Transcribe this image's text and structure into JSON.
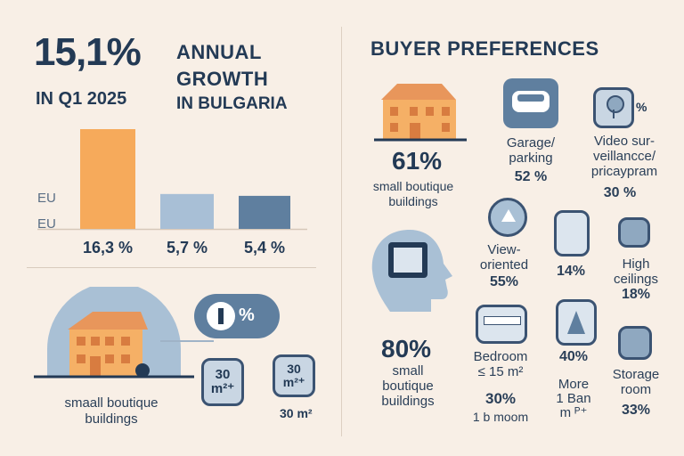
{
  "left": {
    "growth_value": "15,1%",
    "growth_label_1": "ANNUAL",
    "growth_label_2": "GROWTH",
    "period": "IN Q1 2025",
    "region": "IN BULGARIA",
    "axis_labels": [
      "EU",
      "EU"
    ],
    "bottom_label": "smaall boutique\nbuildings",
    "pill_text": "%",
    "tile_a": "30\nm²⁺",
    "tile_b": "30\nm²⁺",
    "tile_b_caption": "30 m²"
  },
  "chart_data": {
    "type": "bar",
    "categories": [
      "16,3 %",
      "5,7 %",
      "5,4 %"
    ],
    "values": [
      16.3,
      5.7,
      5.4
    ],
    "colors": [
      "#f6aa5b",
      "#a8bfd6",
      "#5f7f9f"
    ],
    "title": "",
    "xlabel": "",
    "ylabel": ""
  },
  "right": {
    "title": "BUYER PREFERENCES",
    "boutique_pct": "61%",
    "boutique_label": "small boutique\nbuildings",
    "garage_label": "Garage/\nparking",
    "garage_pct": "52 %",
    "video_label": "Video sur-\nveillancce/\npricaypram",
    "video_pct": "30 %",
    "video_icon_text": "%",
    "view_label": "View-\noriented",
    "view_pct": "55%",
    "window_pct": "14%",
    "ceilings_label": "High\nceilings",
    "ceilings_pct": "18%",
    "head_pct": "80%",
    "head_label": "small\nboutique\nbuildings",
    "bedroom_label": "Bedroom\n≤ 15 m²",
    "bedroom_pct": "30%",
    "bedroom_sub": "1 b moom",
    "more_pct": "40%",
    "more_label": "More\n1 Ban\nm ᴾ⁺",
    "storage_label": "Storage\nroom",
    "storage_pct": "33%"
  }
}
